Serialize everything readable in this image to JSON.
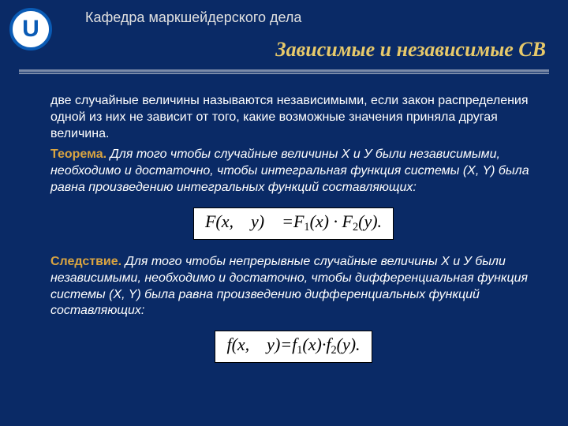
{
  "colors": {
    "background": "#0a2a66",
    "text_body": "#ffffff",
    "department": "#e0e0e0",
    "title": "#e7c96a",
    "theorem_label": "#d9a441",
    "corollary_label": "#d9a441",
    "hr": "#7a8aa8",
    "logo_bg": "#ffffff",
    "logo_border": "#0a5bb5",
    "logo_text": "#0a5bb5"
  },
  "logo": {
    "letter": "U"
  },
  "department": "Кафедра маркшейдерского дела",
  "title": "Зависимые и независимые СВ",
  "intro": "две случайные величины называются независимыми, если закон распределения одной из них не зависит от того, какие возможные значения приняла другая величина.",
  "theorem": {
    "label": "Теорема.",
    "text": "Для того чтобы случайные величины Х и У были независимыми, необходимо и достаточно, чтобы интегральная функция системы (X, Y) была равна произведению интегральных функций составляющих:"
  },
  "formula1": {
    "F": "F",
    "lparen": "(",
    "x": "x",
    "comma_gap": ", ",
    "y": "y",
    "rparen": ")",
    "gap_eq": " =",
    "F1": "F",
    "sub1": "1",
    "lp1": "(",
    "x1": "x",
    "rp1": ")",
    "dot": " · ",
    "F2": "F",
    "sub2": "2",
    "lp2": "(",
    "y2": "y",
    "rp2_dot": ")."
  },
  "corollary": {
    "label": "Следствие.",
    "text": "Для того чтобы непрерывные случайные величины X и У были независимыми, необходимо и достаточно, чтобы дифференциальная функция системы (X, Y) была равна произведению дифференциальных функций составляющих:"
  },
  "formula2": {
    "f": "f",
    "lparen": "(",
    "x": "x",
    "comma_gap": ", ",
    "y": "y",
    "rparen": ")",
    "eq": "=",
    "f1": "f",
    "sub1": "1",
    "lp1": "(",
    "x1": "x",
    "rp1": ")",
    "dot": "·",
    "f2": "f",
    "sub2": "2",
    "lp2": "(",
    "y2": "y",
    "rp2_dot": ")."
  }
}
